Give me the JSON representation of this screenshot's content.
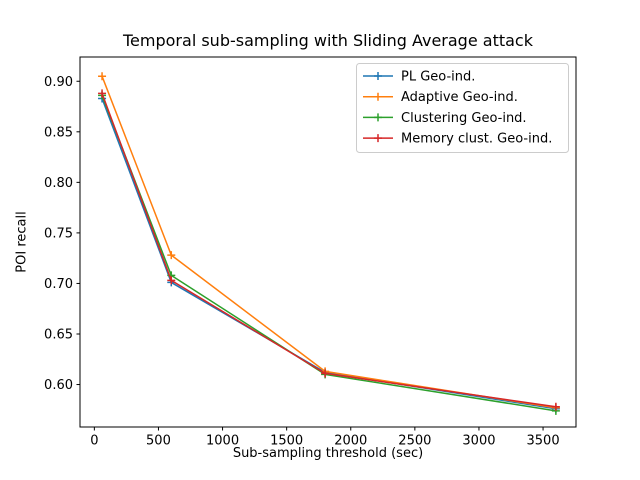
{
  "title": "Temporal sub-sampling with Sliding Average attack",
  "chart_data": {
    "type": "line",
    "title": "Temporal sub-sampling with Sliding Average attack",
    "xlabel": "Sub-sampling threshold (sec)",
    "ylabel": "POI recall",
    "x": [
      60,
      600,
      1800,
      3600
    ],
    "series": [
      {
        "name": "PL Geo-ind.",
        "color": "#1f77b4",
        "values": [
          0.883,
          0.701,
          0.612,
          0.576
        ]
      },
      {
        "name": "Adaptive Geo-ind.",
        "color": "#ff7f0e",
        "values": [
          0.905,
          0.728,
          0.613,
          0.577
        ]
      },
      {
        "name": "Clustering Geo-ind.",
        "color": "#2ca02c",
        "values": [
          0.886,
          0.708,
          0.61,
          0.574
        ]
      },
      {
        "name": "Memory clust. Geo-ind.",
        "color": "#d62728",
        "values": [
          0.888,
          0.703,
          0.611,
          0.578
        ]
      }
    ],
    "marker": "+",
    "grid": false,
    "legend_position": "upper right",
    "xticks": [
      0,
      500,
      1000,
      1500,
      2000,
      2500,
      3000,
      3500
    ],
    "xtick_labels": [
      "0",
      "500",
      "1000",
      "1500",
      "2000",
      "2500",
      "3000",
      "3500"
    ],
    "yticks": [
      0.6,
      0.65,
      0.7,
      0.75,
      0.8,
      0.85,
      0.9
    ],
    "ytick_labels": [
      "0.60",
      "0.65",
      "0.70",
      "0.75",
      "0.80",
      "0.85",
      "0.90"
    ],
    "xlim": [
      -112,
      3757
    ],
    "ylim": [
      0.558,
      0.924
    ],
    "colors": {
      "axes_bg": "#ffffff",
      "figure_bg": "#ffffff",
      "spine": "#000000",
      "legend_border": "#cccccc",
      "text": "#000000"
    }
  }
}
